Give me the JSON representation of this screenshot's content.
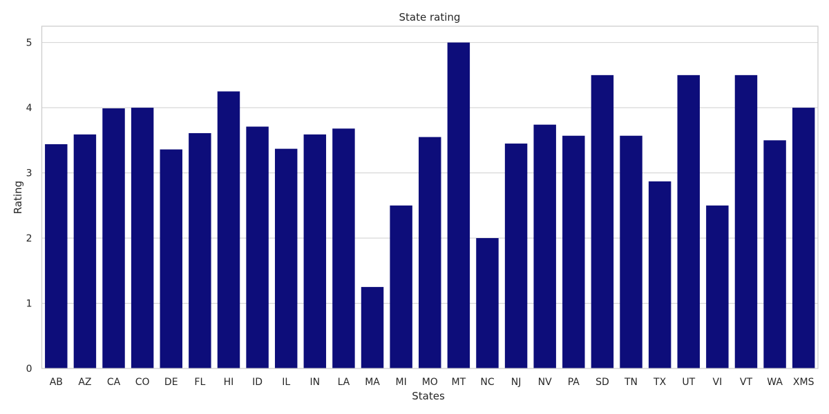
{
  "chart_data": {
    "type": "bar",
    "title": "State rating",
    "xlabel": "States",
    "ylabel": "Rating",
    "categories": [
      "AB",
      "AZ",
      "CA",
      "CO",
      "DE",
      "FL",
      "HI",
      "ID",
      "IL",
      "IN",
      "LA",
      "MA",
      "MI",
      "MO",
      "MT",
      "NC",
      "NJ",
      "NV",
      "PA",
      "SD",
      "TN",
      "TX",
      "UT",
      "VI",
      "VT",
      "WA",
      "XMS"
    ],
    "values": [
      3.44,
      3.59,
      3.99,
      4.0,
      3.36,
      3.61,
      4.25,
      3.71,
      3.37,
      3.59,
      3.68,
      1.25,
      2.5,
      3.55,
      5.0,
      2.0,
      3.45,
      3.74,
      3.57,
      4.5,
      3.57,
      2.87,
      4.5,
      2.5,
      4.5,
      3.5,
      4.0
    ],
    "ylim": [
      0,
      5.25
    ],
    "yticks": [
      0,
      1,
      2,
      3,
      4,
      5
    ],
    "grid": true,
    "bar_color": "#0d0d7a",
    "grid_color": "#d3d3d3",
    "frame_color": "#cccccc"
  }
}
